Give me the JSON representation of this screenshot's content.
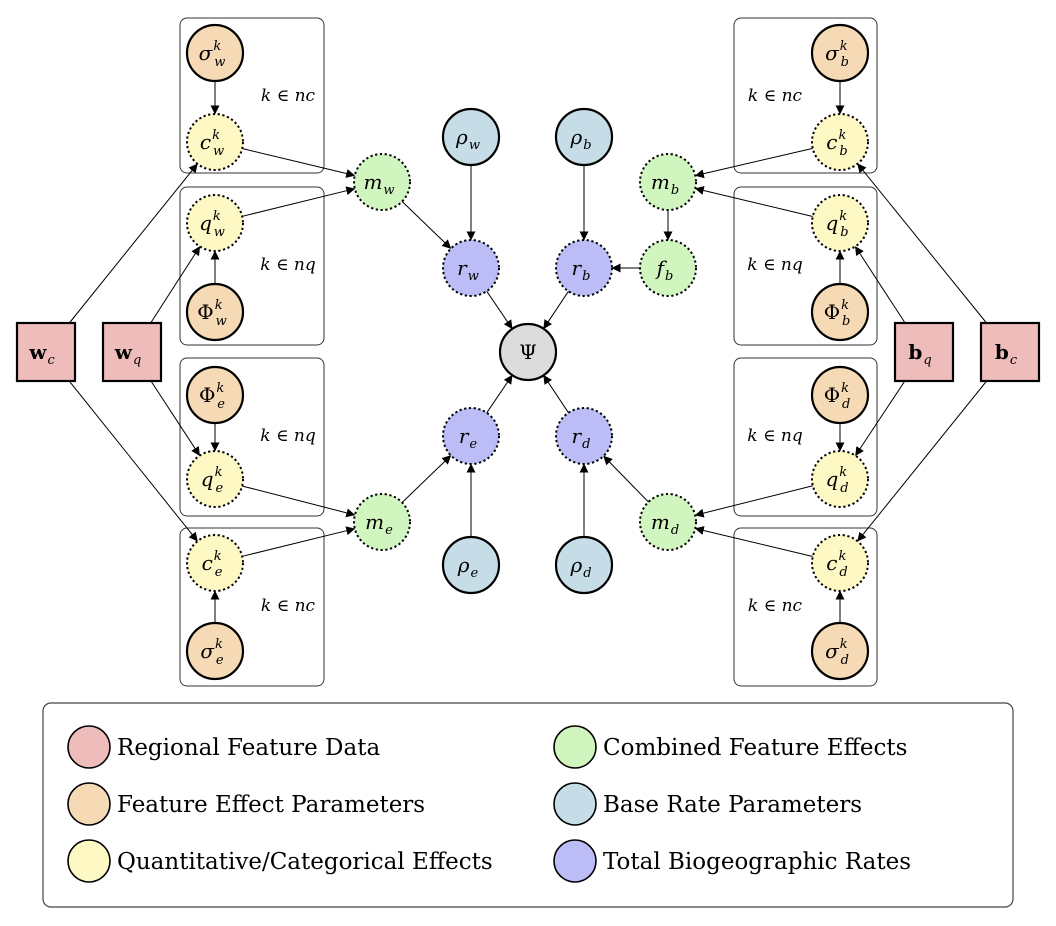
{
  "palette": {
    "regional": "#efbcbc",
    "parameter": "#f6d9b5",
    "effect": "#fdf8c4",
    "combined": "#d1f5bf",
    "base": "#c6dde7",
    "total": "#bcbcf6",
    "psi": "#dcdcdc"
  },
  "plates": [
    {
      "id": "plate-wc",
      "label": "k ∈ nc"
    },
    {
      "id": "plate-wq",
      "label": "k ∈ nq"
    },
    {
      "id": "plate-eq",
      "label": "k ∈ nq"
    },
    {
      "id": "plate-ec",
      "label": "k ∈ nc"
    },
    {
      "id": "plate-bc",
      "label": "k ∈ nc"
    },
    {
      "id": "plate-bq",
      "label": "k ∈ nq"
    },
    {
      "id": "plate-dq",
      "label": "k ∈ nq"
    },
    {
      "id": "plate-dc",
      "label": "k ∈ nc"
    }
  ],
  "nodes": [
    {
      "id": "sigma_w",
      "kind": "parameter",
      "base": "σ",
      "sub": "w",
      "sup": "k"
    },
    {
      "id": "c_w",
      "kind": "effect",
      "base": "c",
      "sub": "w",
      "sup": "k"
    },
    {
      "id": "q_w",
      "kind": "effect",
      "base": "q",
      "sub": "w",
      "sup": "k"
    },
    {
      "id": "Phi_w",
      "kind": "parameter",
      "base": "Φ",
      "sub": "w",
      "sup": "k"
    },
    {
      "id": "Phi_e",
      "kind": "parameter",
      "base": "Φ",
      "sub": "e",
      "sup": "k"
    },
    {
      "id": "q_e",
      "kind": "effect",
      "base": "q",
      "sub": "e",
      "sup": "k"
    },
    {
      "id": "c_e",
      "kind": "effect",
      "base": "c",
      "sub": "e",
      "sup": "k"
    },
    {
      "id": "sigma_e",
      "kind": "parameter",
      "base": "σ",
      "sub": "e",
      "sup": "k"
    },
    {
      "id": "sigma_b",
      "kind": "parameter",
      "base": "σ",
      "sub": "b",
      "sup": "k"
    },
    {
      "id": "c_b",
      "kind": "effect",
      "base": "c",
      "sub": "b",
      "sup": "k"
    },
    {
      "id": "q_b",
      "kind": "effect",
      "base": "q",
      "sub": "b",
      "sup": "k"
    },
    {
      "id": "Phi_b",
      "kind": "parameter",
      "base": "Φ",
      "sub": "b",
      "sup": "k"
    },
    {
      "id": "Phi_d",
      "kind": "parameter",
      "base": "Φ",
      "sub": "d",
      "sup": "k"
    },
    {
      "id": "q_d",
      "kind": "effect",
      "base": "q",
      "sub": "d",
      "sup": "k"
    },
    {
      "id": "c_d",
      "kind": "effect",
      "base": "c",
      "sub": "d",
      "sup": "k"
    },
    {
      "id": "sigma_d",
      "kind": "parameter",
      "base": "σ",
      "sub": "d",
      "sup": "k"
    },
    {
      "id": "m_w",
      "kind": "combined",
      "base": "m",
      "sub": "w",
      "sup": ""
    },
    {
      "id": "m_e",
      "kind": "combined",
      "base": "m",
      "sub": "e",
      "sup": ""
    },
    {
      "id": "m_b",
      "kind": "combined",
      "base": "m",
      "sub": "b",
      "sup": ""
    },
    {
      "id": "m_d",
      "kind": "combined",
      "base": "m",
      "sub": "d",
      "sup": ""
    },
    {
      "id": "f_b",
      "kind": "combined",
      "base": "f",
      "sub": "b",
      "sup": ""
    },
    {
      "id": "rho_w",
      "kind": "base",
      "base": "ρ",
      "sub": "w",
      "sup": ""
    },
    {
      "id": "rho_b",
      "kind": "base",
      "base": "ρ",
      "sub": "b",
      "sup": ""
    },
    {
      "id": "rho_e",
      "kind": "base",
      "base": "ρ",
      "sub": "e",
      "sup": ""
    },
    {
      "id": "rho_d",
      "kind": "base",
      "base": "ρ",
      "sub": "d",
      "sup": ""
    },
    {
      "id": "r_w",
      "kind": "total",
      "base": "r",
      "sub": "w",
      "sup": ""
    },
    {
      "id": "r_b",
      "kind": "total",
      "base": "r",
      "sub": "b",
      "sup": ""
    },
    {
      "id": "r_e",
      "kind": "total",
      "base": "r",
      "sub": "e",
      "sup": ""
    },
    {
      "id": "r_d",
      "kind": "total",
      "base": "r",
      "sub": "d",
      "sup": ""
    },
    {
      "id": "psi",
      "kind": "psi",
      "base": "Ψ",
      "sub": "",
      "sup": ""
    },
    {
      "id": "w_c",
      "kind": "regional",
      "base": "w",
      "sub": "c",
      "sup": ""
    },
    {
      "id": "w_q",
      "kind": "regional",
      "base": "w",
      "sub": "q",
      "sup": ""
    },
    {
      "id": "b_q",
      "kind": "regional",
      "base": "b",
      "sub": "q",
      "sup": ""
    },
    {
      "id": "b_c",
      "kind": "regional",
      "base": "b",
      "sub": "c",
      "sup": ""
    }
  ],
  "edges": [
    [
      "sigma_w",
      "c_w"
    ],
    [
      "Phi_w",
      "q_w"
    ],
    [
      "c_w",
      "m_w"
    ],
    [
      "q_w",
      "m_w"
    ],
    [
      "w_c",
      "c_w"
    ],
    [
      "w_q",
      "q_w"
    ],
    [
      "w_q",
      "q_e"
    ],
    [
      "w_c",
      "c_e"
    ],
    [
      "Phi_e",
      "q_e"
    ],
    [
      "sigma_e",
      "c_e"
    ],
    [
      "q_e",
      "m_e"
    ],
    [
      "c_e",
      "m_e"
    ],
    [
      "sigma_b",
      "c_b"
    ],
    [
      "Phi_b",
      "q_b"
    ],
    [
      "c_b",
      "m_b"
    ],
    [
      "q_b",
      "m_b"
    ],
    [
      "b_c",
      "c_b"
    ],
    [
      "b_q",
      "q_b"
    ],
    [
      "b_q",
      "q_d"
    ],
    [
      "b_c",
      "c_d"
    ],
    [
      "Phi_d",
      "q_d"
    ],
    [
      "sigma_d",
      "c_d"
    ],
    [
      "q_d",
      "m_d"
    ],
    [
      "c_d",
      "m_d"
    ],
    [
      "m_b",
      "f_b"
    ],
    [
      "f_b",
      "r_b"
    ],
    [
      "rho_w",
      "r_w"
    ],
    [
      "rho_b",
      "r_b"
    ],
    [
      "m_w",
      "r_w"
    ],
    [
      "m_e",
      "r_e"
    ],
    [
      "m_d",
      "r_d"
    ],
    [
      "rho_e",
      "r_e"
    ],
    [
      "rho_d",
      "r_d"
    ],
    [
      "r_w",
      "psi"
    ],
    [
      "r_b",
      "psi"
    ],
    [
      "r_e",
      "psi"
    ],
    [
      "r_d",
      "psi"
    ]
  ],
  "legend": [
    {
      "kind": "regional",
      "label": "Regional Feature Data"
    },
    {
      "kind": "parameter",
      "label": "Feature Effect Parameters"
    },
    {
      "kind": "effect",
      "label": "Quantitative/Categorical Effects"
    },
    {
      "kind": "combined",
      "label": "Combined Feature Effects"
    },
    {
      "kind": "base",
      "label": "Base Rate Parameters"
    },
    {
      "kind": "total",
      "label": "Total Biogeographic Rates"
    }
  ]
}
